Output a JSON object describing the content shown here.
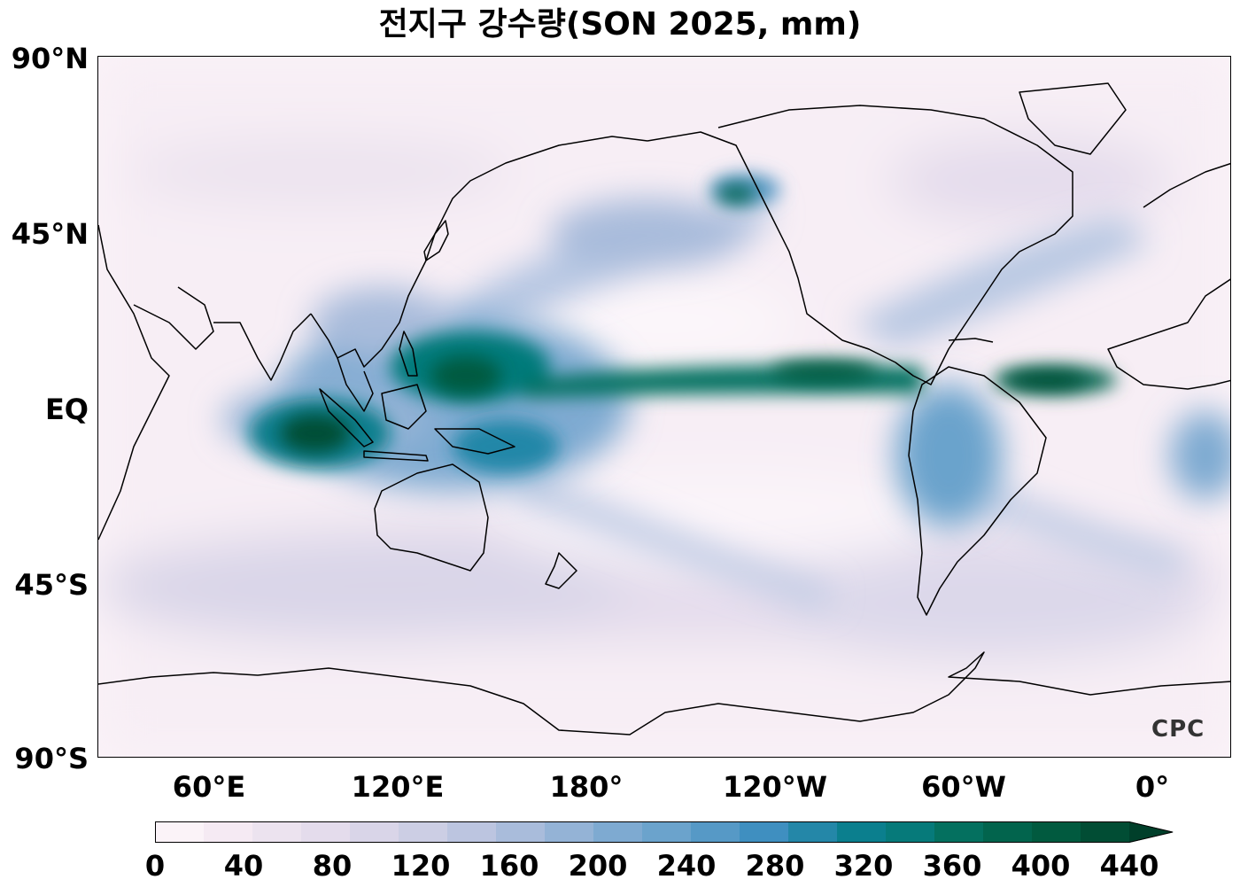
{
  "title": "전지구 강수량(SON 2025, mm)",
  "lat_labels": [
    "90°N",
    "45°N",
    "EQ",
    "45°S",
    "90°S"
  ],
  "lon_labels": [
    "60°E",
    "120°E",
    "180°",
    "120°W",
    "60°W",
    "0°"
  ],
  "colorbar": {
    "ticks": [
      "0",
      "40",
      "80",
      "120",
      "160",
      "200",
      "240",
      "280",
      "320",
      "360",
      "400",
      "440"
    ],
    "colors": [
      "#fbf3f8",
      "#f5eaf3",
      "#ece3ef",
      "#e4dcec",
      "#d9d5e8",
      "#ccceE4",
      "#bcc5e0",
      "#a9bcdb",
      "#94b3d6",
      "#7eaad1",
      "#6ba3cc",
      "#5699c6",
      "#3f8fc0",
      "#2487a8",
      "#0b7f8e",
      "#067a7a",
      "#04705f",
      "#02644d",
      "#015a3f",
      "#014d34",
      "#003f2a"
    ],
    "extend": "max"
  },
  "watermark": "CPC",
  "map_extent": {
    "lon_min": 30,
    "lon_max": 390,
    "lat_min": -90,
    "lat_max": 90
  }
}
